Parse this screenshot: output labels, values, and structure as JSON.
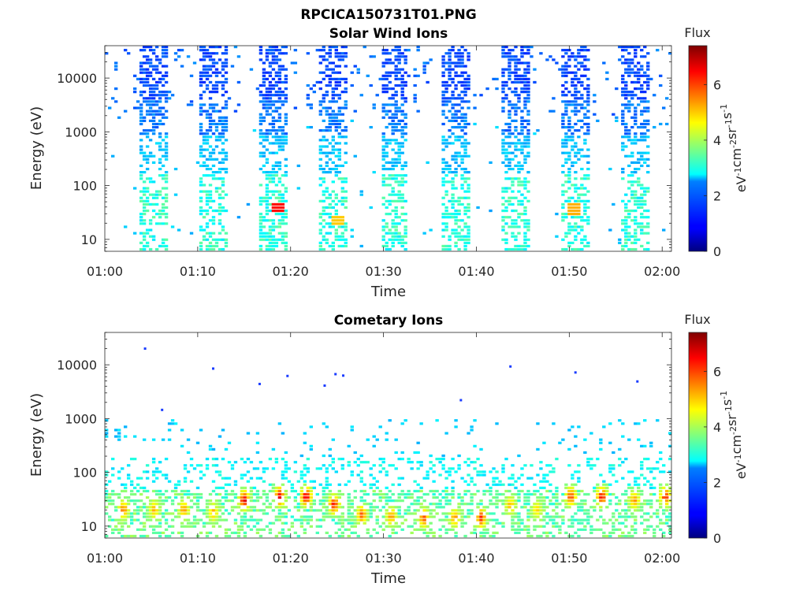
{
  "figure_title": "RPCICA150731T01.PNG",
  "colorbar": {
    "title": "Flux",
    "label_base": "eV",
    "label_parts": [
      {
        "t": "eV",
        "sup": false
      },
      {
        "t": "-1",
        "sup": true
      },
      {
        "t": "cm",
        "sup": false
      },
      {
        "t": "-2",
        "sup": true
      },
      {
        "t": "sr",
        "sup": false
      },
      {
        "t": "-1",
        "sup": true
      },
      {
        "t": "s",
        "sup": false
      },
      {
        "t": "-1",
        "sup": true
      }
    ],
    "range": [
      0,
      7.4
    ],
    "ticks": [
      0,
      2,
      4,
      6
    ],
    "tick_labels": [
      "0",
      "2",
      "4",
      "6"
    ],
    "colormap": "jet"
  },
  "chart_data": [
    {
      "type": "heatmap",
      "title": "Solar Wind Ions",
      "xlabel": "Time",
      "ylabel": "Energy (eV)",
      "y_scale": "log",
      "ylim": [
        6,
        40000
      ],
      "x_range_minutes": [
        60,
        121
      ],
      "x_ticks": [
        "01:00",
        "01:10",
        "01:20",
        "01:30",
        "01:40",
        "01:50",
        "02:00"
      ],
      "y_ticks": [
        "10",
        "100",
        "1000",
        "10000"
      ],
      "y_tick_values": [
        10,
        100,
        1000,
        10000
      ],
      "bursts_start_time": [
        "01:03:40",
        "01:10:10",
        "01:16:40",
        "01:23:10",
        "01:29:40",
        "01:36:10",
        "01:42:40",
        "01:49:10",
        "01:55:40"
      ],
      "burst_duration_min": 3.0,
      "hotspots": [
        {
          "time": "01:18:40",
          "energy": 38,
          "flux": 6.4
        },
        {
          "time": "01:25:00",
          "energy": 22,
          "flux": 5.0
        },
        {
          "time": "01:50:30",
          "energy": 36,
          "flux": 5.2
        }
      ]
    },
    {
      "type": "heatmap",
      "title": "Cometary Ions",
      "xlabel": "Time",
      "ylabel": "Energy (eV)",
      "y_scale": "log",
      "ylim": [
        6,
        40000
      ],
      "x_range_minutes": [
        60,
        121
      ],
      "x_ticks": [
        "01:00",
        "01:10",
        "01:20",
        "01:30",
        "01:40",
        "01:50",
        "02:00"
      ],
      "y_ticks": [
        "10",
        "100",
        "1000",
        "10000"
      ],
      "y_tick_values": [
        10,
        100,
        1000,
        10000
      ],
      "low_energy_hotspots": [
        {
          "time": "01:02:00",
          "energy": 20,
          "flux": 6.0
        },
        {
          "time": "01:05:20",
          "energy": 20,
          "flux": 5.5
        },
        {
          "time": "01:08:30",
          "energy": 20,
          "flux": 5.8
        },
        {
          "time": "01:11:40",
          "energy": 18,
          "flux": 5.5
        },
        {
          "time": "01:15:00",
          "energy": 30,
          "flux": 7.2
        },
        {
          "time": "01:18:50",
          "energy": 35,
          "flux": 7.0
        },
        {
          "time": "01:21:40",
          "energy": 35,
          "flux": 7.4
        },
        {
          "time": "01:24:40",
          "energy": 25,
          "flux": 6.8
        },
        {
          "time": "01:27:40",
          "energy": 16,
          "flux": 6.2
        },
        {
          "time": "01:30:50",
          "energy": 15,
          "flux": 5.8
        },
        {
          "time": "01:34:20",
          "energy": 14,
          "flux": 6.3
        },
        {
          "time": "01:37:40",
          "energy": 14,
          "flux": 5.8
        },
        {
          "time": "01:40:30",
          "energy": 14,
          "flux": 6.5
        },
        {
          "time": "01:43:40",
          "energy": 24,
          "flux": 5.5
        },
        {
          "time": "01:46:30",
          "energy": 20,
          "flux": 5.2
        },
        {
          "time": "01:50:10",
          "energy": 35,
          "flux": 6.5
        },
        {
          "time": "01:53:30",
          "energy": 35,
          "flux": 7.0
        },
        {
          "time": "01:57:00",
          "energy": 30,
          "flux": 5.8
        },
        {
          "time": "02:00:20",
          "energy": 35,
          "flux": 6.8
        }
      ],
      "isolated_high_energy_points": [
        {
          "time": "01:04:20",
          "energy": 20000
        },
        {
          "time": "01:06:10",
          "energy": 1450
        },
        {
          "time": "01:11:40",
          "energy": 8500
        },
        {
          "time": "01:16:40",
          "energy": 4400
        },
        {
          "time": "01:19:40",
          "energy": 6200
        },
        {
          "time": "01:23:40",
          "energy": 4100
        },
        {
          "time": "01:24:50",
          "energy": 6700
        },
        {
          "time": "01:25:40",
          "energy": 6300
        },
        {
          "time": "01:38:20",
          "energy": 2200
        },
        {
          "time": "01:43:40",
          "energy": 9300
        },
        {
          "time": "01:50:40",
          "energy": 7200
        },
        {
          "time": "01:57:20",
          "energy": 4900
        }
      ]
    }
  ]
}
